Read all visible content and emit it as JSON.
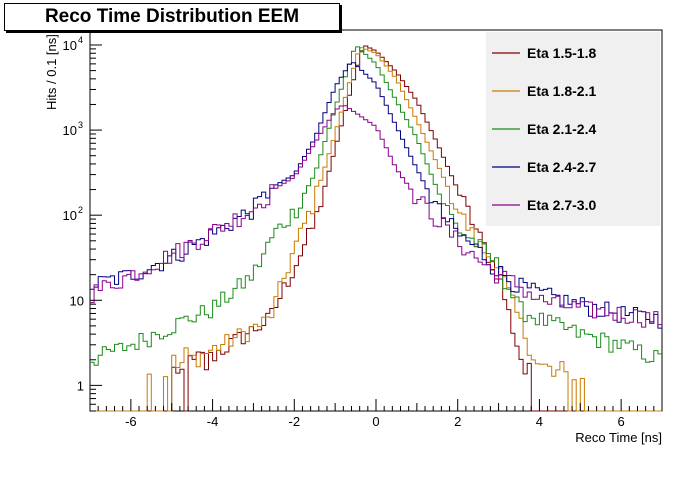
{
  "chart_data": {
    "type": "histogram",
    "title": "Reco Time Distribution EEM",
    "xlabel": "Reco Time [ns]",
    "ylabel": "Hits / 0.1 [ns]",
    "xlim": [
      -7,
      7
    ],
    "ylim": [
      0.5,
      15000
    ],
    "yscale": "log",
    "xticks": [
      "-6",
      "-4",
      "-2",
      "0",
      "2",
      "4",
      "6"
    ],
    "yticks": [
      {
        "value": 1,
        "label": "1"
      },
      {
        "value": 10,
        "label": "10"
      },
      {
        "value": 100,
        "label": "10^2"
      },
      {
        "value": 1000,
        "label": "10^3"
      },
      {
        "value": 10000,
        "label": "10^4"
      }
    ],
    "legend_position": "top-right",
    "bin_width": 0.1,
    "series": [
      {
        "name": "Eta 1.5-1.8",
        "color": "#7f0000",
        "peak_x": -0.3,
        "peak_y": 10000,
        "profile": [
          [
            -7,
            0.5
          ],
          [
            -5.4,
            0.5
          ],
          [
            -4.8,
            1.2
          ],
          [
            -3.6,
            3
          ],
          [
            -2.6,
            6
          ],
          [
            -2,
            25
          ],
          [
            -1.5,
            80
          ],
          [
            -1,
            600
          ],
          [
            -0.5,
            4800
          ],
          [
            -0.3,
            10000
          ],
          [
            0,
            8500
          ],
          [
            0.5,
            4800
          ],
          [
            1,
            2200
          ],
          [
            1.5,
            700
          ],
          [
            2,
            200
          ],
          [
            2.5,
            60
          ],
          [
            3,
            20
          ],
          [
            3.5,
            2.5
          ],
          [
            4,
            0.5
          ],
          [
            7,
            0.5
          ]
        ]
      },
      {
        "name": "Eta 1.8-2.1",
        "color": "#c87b00",
        "peak_x": -0.4,
        "peak_y": 9500,
        "profile": [
          [
            -7,
            0.5
          ],
          [
            -6,
            0.5
          ],
          [
            -5.5,
            1.2
          ],
          [
            -4.5,
            2
          ],
          [
            -3.5,
            3.5
          ],
          [
            -2.6,
            6
          ],
          [
            -2,
            40
          ],
          [
            -1.5,
            150
          ],
          [
            -1,
            900
          ],
          [
            -0.5,
            6500
          ],
          [
            -0.4,
            9500
          ],
          [
            0,
            8000
          ],
          [
            0.5,
            4000
          ],
          [
            1,
            1300
          ],
          [
            1.5,
            400
          ],
          [
            2,
            120
          ],
          [
            2.5,
            45
          ],
          [
            3,
            25
          ],
          [
            3.5,
            6
          ],
          [
            4,
            1.5
          ],
          [
            5,
            1
          ],
          [
            6,
            0.5
          ],
          [
            7,
            0.5
          ]
        ]
      },
      {
        "name": "Eta 2.1-2.4",
        "color": "#1a8c1a",
        "peak_x": -0.5,
        "peak_y": 10000,
        "profile": [
          [
            -7,
            2
          ],
          [
            -6,
            3
          ],
          [
            -5,
            5
          ],
          [
            -4,
            8
          ],
          [
            -3,
            20
          ],
          [
            -2.5,
            60
          ],
          [
            -2,
            110
          ],
          [
            -1.5,
            300
          ],
          [
            -1,
            1800
          ],
          [
            -0.5,
            10000
          ],
          [
            0,
            6000
          ],
          [
            0.5,
            2200
          ],
          [
            1,
            800
          ],
          [
            1.5,
            200
          ],
          [
            2,
            70
          ],
          [
            2.5,
            45
          ],
          [
            3,
            25
          ],
          [
            3.5,
            8
          ],
          [
            4,
            6
          ],
          [
            5,
            4
          ],
          [
            6,
            3
          ],
          [
            7,
            2
          ]
        ]
      },
      {
        "name": "Eta 2.4-2.7",
        "color": "#000080",
        "peak_x": -0.6,
        "peak_y": 6500,
        "profile": [
          [
            -7,
            15
          ],
          [
            -6,
            20
          ],
          [
            -5,
            32
          ],
          [
            -4,
            60
          ],
          [
            -3,
            120
          ],
          [
            -2.5,
            220
          ],
          [
            -2,
            300
          ],
          [
            -1.5,
            800
          ],
          [
            -1,
            3200
          ],
          [
            -0.6,
            6500
          ],
          [
            0,
            3500
          ],
          [
            0.5,
            1100
          ],
          [
            1,
            350
          ],
          [
            1.5,
            120
          ],
          [
            2,
            60
          ],
          [
            2.5,
            40
          ],
          [
            3,
            22
          ],
          [
            3.5,
            15
          ],
          [
            4,
            12
          ],
          [
            5,
            9
          ],
          [
            6,
            7
          ],
          [
            7,
            6
          ]
        ]
      },
      {
        "name": "Eta 2.7-3.0",
        "color": "#8b008b",
        "peak_x": -0.8,
        "peak_y": 2000,
        "profile": [
          [
            -7,
            12
          ],
          [
            -6,
            20
          ],
          [
            -5,
            35
          ],
          [
            -4,
            65
          ],
          [
            -3,
            120
          ],
          [
            -2.5,
            200
          ],
          [
            -2,
            280
          ],
          [
            -1.5,
            700
          ],
          [
            -1,
            1700
          ],
          [
            -0.8,
            2000
          ],
          [
            0,
            1100
          ],
          [
            0.5,
            350
          ],
          [
            1,
            160
          ],
          [
            1.5,
            90
          ],
          [
            2,
            50
          ],
          [
            2.5,
            30
          ],
          [
            3,
            20
          ],
          [
            3.5,
            15
          ],
          [
            4,
            10
          ],
          [
            5,
            8
          ],
          [
            6,
            7
          ],
          [
            7,
            6
          ]
        ]
      }
    ]
  }
}
